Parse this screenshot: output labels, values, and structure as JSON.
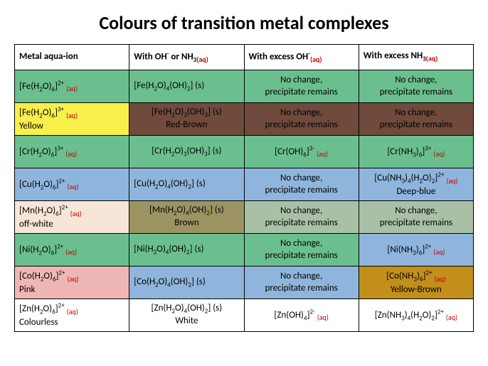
{
  "title": "Colours of transition metal complexes",
  "colors": {
    "green": "#6bbf8f",
    "yellow": "#f8ef4b",
    "redbrown": "#6f4a3d",
    "blue": "#8fb5dd",
    "offwhite": "#f7e5d8",
    "olive": "#9c9362",
    "greygrn": "#a9c0a6",
    "pink": "#efb6b6",
    "mustard": "#c38f1b",
    "white": "#ffffff"
  },
  "columns": [
    "Metal aqua-ion",
    "With OH⁻ or NH₃₍ₐq₎",
    "With excess OH⁻₍ₐq₎",
    "With excess NH₃₍ₐq₎"
  ],
  "rows": [
    {
      "c0": {
        "bg": "green",
        "f": "[Fe(H₂O)₆]²⁺",
        "aq": true,
        "note": null
      },
      "c1": {
        "bg": "green",
        "f": "[Fe(H₂O)₄(OH)₂] (s)",
        "note": null,
        "center": false
      },
      "c2": {
        "bg": "green",
        "t": "No change,\nprecipitate remains",
        "center": true
      },
      "c3": {
        "bg": "green",
        "t": "No change,\nprecipitate remains",
        "center": true
      }
    },
    {
      "c0": {
        "bg": "yellow",
        "f": "[Fe(H₂O)₆]³⁺",
        "aq": true,
        "note": "Yellow"
      },
      "c1": {
        "bg": "redbrown",
        "f": "[Fe(H₂O)₃(OH)₃] (s)",
        "note": "Red-Brown",
        "center": true
      },
      "c2": {
        "bg": "redbrown",
        "t": "No change,\nprecipitate remains",
        "center": true
      },
      "c3": {
        "bg": "redbrown",
        "t": "No change,\nprecipitate remains",
        "center": true
      }
    },
    {
      "c0": {
        "bg": "green",
        "f": "[Cr(H₂O)₆]³⁺",
        "aq": true,
        "note": null
      },
      "c1": {
        "bg": "green",
        "f": "[Cr(H₂O)₃(OH)₃] (s)",
        "note": null,
        "center": true
      },
      "c2": {
        "bg": "green",
        "f": "[Cr(OH)₆]³⁻",
        "aq": true,
        "center": true
      },
      "c3": {
        "bg": "green",
        "f": "[Cr(NH₃)₆]³⁺",
        "aq": true,
        "center": true
      }
    },
    {
      "c0": {
        "bg": "blue",
        "f": "[Cu(H₂O)₆]²⁺",
        "aq": true,
        "note": null
      },
      "c1": {
        "bg": "blue",
        "f": "[Cu(H₂O)₄(OH)₂] (s)",
        "note": null,
        "center": false
      },
      "c2": {
        "bg": "blue",
        "t": "No change,\nprecipitate remains",
        "center": true
      },
      "c3": {
        "bg": "blue",
        "f": "[Cu(NH₃)₄(H₂O)₂]²⁺",
        "aq": true,
        "note": "Deep-blue",
        "center": true
      }
    },
    {
      "c0": {
        "bg": "offwhite",
        "f": "[Mn(H₂O)₆]²⁺",
        "aq": true,
        "note": "off-white"
      },
      "c1": {
        "bg": "olive",
        "f": "[Mn(H₂O)₄(OH)₂] (s)",
        "note": "Brown",
        "center": true
      },
      "c2": {
        "bg": "greygrn",
        "t": "No change,\nprecipitate remains",
        "center": true
      },
      "c3": {
        "bg": "greygrn",
        "t": "No change,\nprecipitate remains",
        "center": true
      }
    },
    {
      "c0": {
        "bg": "green",
        "f": "[Ni(H₂O)₆]²⁺",
        "aq": true,
        "note": null
      },
      "c1": {
        "bg": "green",
        "f": "[Ni(H₂O)₄(OH)₂] (s)",
        "note": null,
        "center": false
      },
      "c2": {
        "bg": "green",
        "t": "No change,\nprecipitate remains",
        "center": true
      },
      "c3": {
        "bg": "blue",
        "f": "[Ni(NH₃)₆]²⁺",
        "aq": true,
        "center": true
      }
    },
    {
      "c0": {
        "bg": "pink",
        "f": "[Co(H₂O)₆]²⁺",
        "aq": true,
        "note": "Pink"
      },
      "c1": {
        "bg": "blue",
        "f": "[Co(H₂O)₄(OH)₂] (s)",
        "note": null,
        "center": false
      },
      "c2": {
        "bg": "blue",
        "t": "No change,\nprecipitate remains",
        "center": true
      },
      "c3": {
        "bg": "mustard",
        "f": "[Co(NH₃)₆]²⁺",
        "aq": true,
        "note": "Yellow-Brown",
        "center": true
      }
    },
    {
      "c0": {
        "bg": "white",
        "f": "[Zn(H₂O)₆]²⁺",
        "aq": true,
        "note": "Colourless"
      },
      "c1": {
        "bg": "white",
        "f": "[Zn(H₂O)₄(OH)₂] (s)",
        "note": "White",
        "center": true
      },
      "c2": {
        "bg": "white",
        "f": "[Zn(OH)₄]²⁻",
        "aq": true,
        "center": true
      },
      "c3": {
        "bg": "white",
        "f": "[Zn(NH₃)₄(H₂O)₂]²⁺",
        "aq": true,
        "center": true
      }
    }
  ]
}
